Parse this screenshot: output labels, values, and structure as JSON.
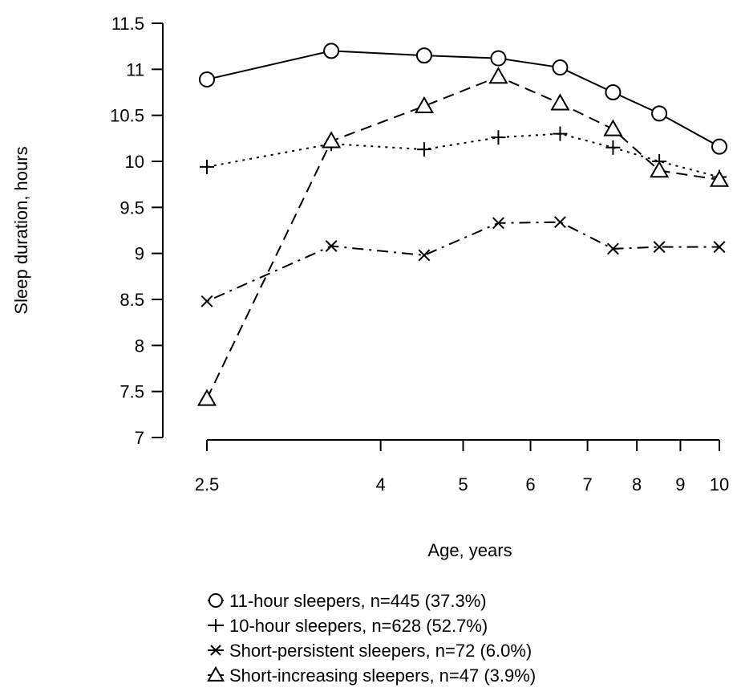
{
  "chart_data": {
    "type": "line",
    "xlabel": "Age, years",
    "ylabel": "Sleep duration, hours",
    "x_scale": "log",
    "x_ticks": [
      2.5,
      4,
      5,
      6,
      7,
      8,
      9,
      10
    ],
    "x_tick_labels": [
      "2.5",
      "4",
      "5",
      "6",
      "7",
      "8",
      "9",
      "10"
    ],
    "y_ticks": [
      7,
      7.5,
      8,
      8.5,
      9,
      9.5,
      10,
      10.5,
      11,
      11.5
    ],
    "y_tick_labels": [
      "7",
      "7.5",
      "8",
      "8.5",
      "9",
      "9.5",
      "10",
      "10.5",
      "11",
      "11.5"
    ],
    "ylim": [
      7,
      11.5
    ],
    "xlim": [
      2.5,
      10
    ],
    "grid": false,
    "legend_position": "bottom",
    "x": [
      2.5,
      3.5,
      4.5,
      5.5,
      6.5,
      7.5,
      8.5,
      10
    ],
    "series": [
      {
        "name": "11-hour sleepers, n=445 (37.3%)",
        "marker": "circle",
        "line_style": "solid",
        "values": [
          10.89,
          11.2,
          11.15,
          11.12,
          11.02,
          10.75,
          10.52,
          10.16
        ]
      },
      {
        "name": "10-hour sleepers, n=628 (52.7%)",
        "marker": "plus",
        "line_style": "dotted",
        "values": [
          9.94,
          10.19,
          10.13,
          10.26,
          10.3,
          10.15,
          10.0,
          9.83
        ]
      },
      {
        "name": "Short-persistent sleepers, n=72 (6.0%)",
        "marker": "cross",
        "line_style": "dashdot",
        "values": [
          8.48,
          9.08,
          8.98,
          9.33,
          9.34,
          9.05,
          9.07,
          9.07
        ]
      },
      {
        "name": "Short-increasing sleepers, n=47 (3.9%)",
        "marker": "triangle",
        "line_style": "dashed",
        "values": [
          7.42,
          10.22,
          10.6,
          10.92,
          10.63,
          10.35,
          9.9,
          9.8
        ]
      }
    ]
  }
}
